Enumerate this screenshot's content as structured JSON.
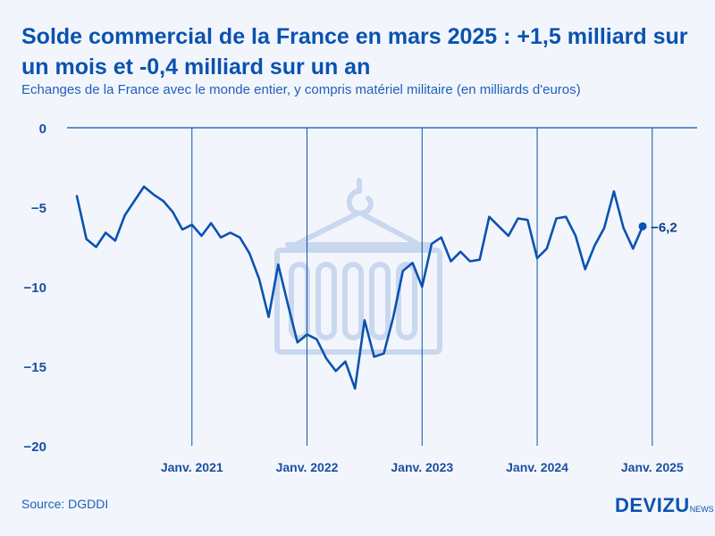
{
  "header": {
    "title": "Solde commercial de la France en mars 2025 : +1,5 milliard sur un mois et -0,4 milliard sur un an",
    "subtitle": "Echanges de la France avec le monde entier, y compris matériel militaire (en milliards d'euros)"
  },
  "footer": {
    "source": "Source: DGDDI",
    "brand": "DEVIZU",
    "brand_suffix": "NEWS"
  },
  "colors": {
    "line": "#0b52b0",
    "watermark": "#c9d8ee",
    "background": "#f2f6fc"
  },
  "watermark_icon": "container-hook-icon",
  "chart_data": {
    "type": "line",
    "title": "Solde commercial de la France en mars 2025 : +1,5 milliard sur un mois et -0,4 milliard sur un an",
    "xlabel": "",
    "ylabel": "",
    "ylim": [
      -20,
      0
    ],
    "yticks": [
      0,
      -5,
      -10,
      -15,
      -20
    ],
    "ytick_labels": [
      "0",
      "−5",
      "−10",
      "−15",
      "−20"
    ],
    "xtick_labels": [
      "Janv. 2021",
      "Janv. 2022",
      "Janv. 2023",
      "Janv. 2024",
      "Janv. 2025"
    ],
    "xtick_index": [
      12,
      24,
      36,
      48,
      60
    ],
    "grid": "vertical lines at January of each year",
    "series": [
      {
        "name": "Solde commercial",
        "start": "Janv. 2020",
        "values": [
          -4.3,
          -7.0,
          -7.5,
          -6.6,
          -7.1,
          -5.5,
          -4.6,
          -3.7,
          -4.2,
          -4.6,
          -5.3,
          -6.4,
          -6.1,
          -6.8,
          -6.0,
          -6.9,
          -6.6,
          -6.9,
          -7.9,
          -9.5,
          -11.9,
          -8.6,
          -11.1,
          -13.5,
          -13.0,
          -13.3,
          -14.5,
          -15.3,
          -14.7,
          -16.4,
          -12.1,
          -14.4,
          -14.2,
          -11.9,
          -9.0,
          -8.5,
          -10.0,
          -7.3,
          -6.9,
          -8.4,
          -7.8,
          -8.4,
          -8.3,
          -5.6,
          -6.2,
          -6.8,
          -5.7,
          -5.8,
          -8.2,
          -7.6,
          -5.7,
          -5.6,
          -6.8,
          -8.9,
          -7.4,
          -6.3,
          -4.0,
          -6.3,
          -7.6,
          -6.2
        ]
      }
    ],
    "last_point_label": "−6,2"
  }
}
